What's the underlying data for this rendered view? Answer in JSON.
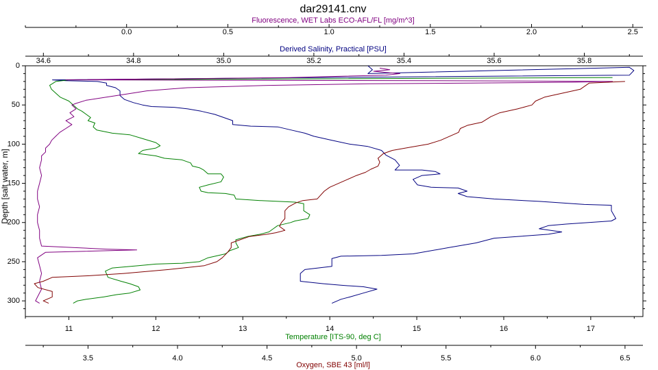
{
  "chart_data": {
    "type": "line",
    "title": "dar29141.cnv",
    "ylabel": "Depth [salt water, m]",
    "ylim": [
      0,
      320
    ],
    "yticks": [
      0,
      50,
      100,
      150,
      200,
      250,
      300
    ],
    "y_inverted": true,
    "grid": false,
    "axes": {
      "fluorescence": {
        "label": "Fluorescence, WET Labs ECO-AFL/FL [mg/m^3]",
        "position": "top-outer",
        "range": [
          -0.5,
          2.55
        ],
        "ticks": [
          "0.0",
          "0.5",
          "1.0",
          "1.5",
          "2.0",
          "2.5"
        ],
        "color": "#800080"
      },
      "salinity": {
        "label": "Derived Salinity, Practical [PSU]",
        "position": "top-inner",
        "range": [
          34.56,
          35.93
        ],
        "ticks": [
          "34.6",
          "34.8",
          "35.0",
          "35.2",
          "35.4",
          "35.6",
          "35.8"
        ],
        "color": "#000080"
      },
      "temperature": {
        "label": "Temperature [ITS-90, deg C]",
        "position": "bottom-inner",
        "range": [
          10.5,
          17.6
        ],
        "ticks": [
          "11",
          "12",
          "13",
          "14",
          "15",
          "16",
          "17"
        ],
        "color": "#008000"
      },
      "oxygen": {
        "label": "Oxygen, SBE 43 [ml/l]",
        "position": "bottom-outer",
        "range": [
          3.15,
          6.6
        ],
        "ticks": [
          "3.5",
          "4.0",
          "4.5",
          "5.0",
          "5.5",
          "6.0",
          "6.5"
        ],
        "color": "#800000"
      }
    },
    "series": [
      {
        "axis": "salinity",
        "color": "#000080",
        "points": [
          [
            35.32,
            0
          ],
          [
            35.33,
            5
          ],
          [
            35.32,
            10
          ],
          [
            35.9,
            2
          ],
          [
            35.91,
            6
          ],
          [
            35.9,
            12
          ],
          [
            35.2,
            15
          ],
          [
            34.62,
            18
          ],
          [
            34.65,
            19
          ],
          [
            34.72,
            20
          ],
          [
            34.74,
            22
          ],
          [
            34.74,
            25
          ],
          [
            34.76,
            28
          ],
          [
            34.77,
            32
          ],
          [
            34.77,
            38
          ],
          [
            34.78,
            43
          ],
          [
            34.8,
            47
          ],
          [
            34.82,
            50
          ],
          [
            34.84,
            52
          ],
          [
            34.89,
            53
          ],
          [
            34.92,
            55
          ],
          [
            34.95,
            58
          ],
          [
            34.98,
            62
          ],
          [
            35.0,
            66
          ],
          [
            35.02,
            70
          ],
          [
            35.02,
            75
          ],
          [
            35.06,
            77
          ],
          [
            35.12,
            78
          ],
          [
            35.15,
            82
          ],
          [
            35.18,
            86
          ],
          [
            35.2,
            90
          ],
          [
            35.24,
            95
          ],
          [
            35.28,
            100
          ],
          [
            35.32,
            103
          ],
          [
            35.35,
            108
          ],
          [
            35.36,
            114
          ],
          [
            35.38,
            120
          ],
          [
            35.39,
            127
          ],
          [
            35.38,
            133
          ],
          [
            35.44,
            133
          ],
          [
            35.47,
            135
          ],
          [
            35.48,
            138
          ],
          [
            35.44,
            140
          ],
          [
            35.42,
            145
          ],
          [
            35.43,
            152
          ],
          [
            35.46,
            155
          ],
          [
            35.52,
            156
          ],
          [
            35.54,
            160
          ],
          [
            35.52,
            163
          ],
          [
            35.54,
            167
          ],
          [
            35.6,
            170
          ],
          [
            35.7,
            173
          ],
          [
            35.8,
            177
          ],
          [
            35.86,
            178
          ],
          [
            35.86,
            185
          ],
          [
            35.87,
            195
          ],
          [
            35.86,
            198
          ],
          [
            35.76,
            202
          ],
          [
            35.72,
            204
          ],
          [
            35.7,
            208
          ],
          [
            35.75,
            212
          ],
          [
            35.72,
            215
          ],
          [
            35.6,
            220
          ],
          [
            35.56,
            226
          ],
          [
            35.5,
            232
          ],
          [
            35.42,
            240
          ],
          [
            35.35,
            242
          ],
          [
            35.26,
            243
          ],
          [
            35.24,
            246
          ],
          [
            35.24,
            256
          ],
          [
            35.18,
            260
          ],
          [
            35.17,
            265
          ],
          [
            35.17,
            275
          ],
          [
            35.22,
            278
          ],
          [
            35.26,
            280
          ],
          [
            35.31,
            282
          ],
          [
            35.34,
            285
          ],
          [
            35.31,
            290
          ],
          [
            35.28,
            295
          ],
          [
            35.26,
            298
          ],
          [
            35.24,
            303
          ]
        ]
      },
      {
        "axis": "temperature",
        "color": "#008000",
        "points": [
          [
            17.25,
            15
          ],
          [
            11.0,
            18
          ],
          [
            10.85,
            20
          ],
          [
            10.78,
            25
          ],
          [
            10.8,
            30
          ],
          [
            10.85,
            35
          ],
          [
            10.9,
            40
          ],
          [
            11.0,
            45
          ],
          [
            11.05,
            50
          ],
          [
            11.1,
            55
          ],
          [
            11.15,
            58
          ],
          [
            11.2,
            62
          ],
          [
            11.25,
            66
          ],
          [
            11.22,
            70
          ],
          [
            11.3,
            73
          ],
          [
            11.28,
            78
          ],
          [
            11.32,
            82
          ],
          [
            11.5,
            86
          ],
          [
            11.7,
            88
          ],
          [
            11.85,
            93
          ],
          [
            12.0,
            98
          ],
          [
            12.05,
            102
          ],
          [
            12.0,
            105
          ],
          [
            11.85,
            108
          ],
          [
            11.8,
            112
          ],
          [
            12.0,
            115
          ],
          [
            12.1,
            118
          ],
          [
            12.3,
            120
          ],
          [
            12.4,
            124
          ],
          [
            12.42,
            128
          ],
          [
            12.5,
            130
          ],
          [
            12.55,
            133
          ],
          [
            12.6,
            138
          ],
          [
            12.75,
            138
          ],
          [
            12.78,
            142
          ],
          [
            12.75,
            148
          ],
          [
            12.6,
            152
          ],
          [
            12.5,
            155
          ],
          [
            12.52,
            160
          ],
          [
            12.6,
            162
          ],
          [
            12.8,
            163
          ],
          [
            12.9,
            165
          ],
          [
            12.92,
            170
          ],
          [
            13.2,
            172
          ],
          [
            13.6,
            174
          ],
          [
            13.7,
            176
          ],
          [
            13.7,
            185
          ],
          [
            13.77,
            190
          ],
          [
            13.75,
            195
          ],
          [
            13.6,
            198
          ],
          [
            13.55,
            200
          ],
          [
            13.4,
            204
          ],
          [
            13.35,
            208
          ],
          [
            13.3,
            212
          ],
          [
            13.2,
            215
          ],
          [
            13.05,
            218
          ],
          [
            12.92,
            222
          ],
          [
            12.92,
            226
          ],
          [
            12.95,
            232
          ],
          [
            12.85,
            236
          ],
          [
            12.8,
            240
          ],
          [
            12.6,
            245
          ],
          [
            12.5,
            250
          ],
          [
            12.3,
            252
          ],
          [
            12.0,
            253
          ],
          [
            11.8,
            255
          ],
          [
            11.5,
            258
          ],
          [
            11.42,
            262
          ],
          [
            11.45,
            270
          ],
          [
            11.6,
            275
          ],
          [
            11.7,
            278
          ],
          [
            11.8,
            282
          ],
          [
            11.82,
            286
          ],
          [
            11.7,
            290
          ],
          [
            11.55,
            292
          ],
          [
            11.4,
            295
          ],
          [
            11.2,
            298
          ],
          [
            11.1,
            300
          ],
          [
            11.05,
            303
          ]
        ]
      },
      {
        "axis": "fluorescence",
        "color": "#800080",
        "points": [
          [
            1.25,
            3
          ],
          [
            1.3,
            5
          ],
          [
            1.22,
            7
          ],
          [
            1.3,
            9
          ],
          [
            1.35,
            10
          ],
          [
            1.28,
            12
          ],
          [
            0.8,
            15
          ],
          [
            -0.3,
            18
          ],
          [
            1.5,
            19
          ],
          [
            2.4,
            20
          ],
          [
            2.2,
            21
          ],
          [
            1.7,
            22
          ],
          [
            1.2,
            23
          ],
          [
            0.7,
            25
          ],
          [
            0.3,
            28
          ],
          [
            0.1,
            32
          ],
          [
            0.0,
            36
          ],
          [
            -0.1,
            40
          ],
          [
            -0.2,
            44
          ],
          [
            -0.25,
            48
          ],
          [
            -0.27,
            50
          ],
          [
            -0.25,
            55
          ],
          [
            -0.28,
            60
          ],
          [
            -0.26,
            65
          ],
          [
            -0.3,
            70
          ],
          [
            -0.27,
            75
          ],
          [
            -0.3,
            80
          ],
          [
            -0.33,
            85
          ],
          [
            -0.35,
            90
          ],
          [
            -0.37,
            95
          ],
          [
            -0.38,
            100
          ],
          [
            -0.4,
            105
          ],
          [
            -0.4,
            110
          ],
          [
            -0.42,
            115
          ],
          [
            -0.42,
            120
          ],
          [
            -0.43,
            130
          ],
          [
            -0.42,
            140
          ],
          [
            -0.43,
            150
          ],
          [
            -0.44,
            160
          ],
          [
            -0.44,
            170
          ],
          [
            -0.43,
            180
          ],
          [
            -0.44,
            190
          ],
          [
            -0.44,
            200
          ],
          [
            -0.43,
            210
          ],
          [
            -0.43,
            220
          ],
          [
            -0.42,
            230
          ],
          [
            -0.1,
            234
          ],
          [
            0.05,
            235
          ],
          [
            -0.4,
            238
          ],
          [
            -0.44,
            245
          ],
          [
            -0.43,
            255
          ],
          [
            -0.42,
            265
          ],
          [
            -0.43,
            275
          ],
          [
            -0.42,
            285
          ],
          [
            -0.44,
            295
          ],
          [
            -0.45,
            300
          ],
          [
            -0.43,
            303
          ]
        ]
      },
      {
        "axis": "oxygen",
        "color": "#800000",
        "points": [
          [
            6.5,
            20
          ],
          [
            6.3,
            22
          ],
          [
            6.25,
            30
          ],
          [
            6.15,
            35
          ],
          [
            6.05,
            40
          ],
          [
            6.0,
            45
          ],
          [
            5.98,
            50
          ],
          [
            5.9,
            55
          ],
          [
            5.8,
            60
          ],
          [
            5.75,
            65
          ],
          [
            5.7,
            72
          ],
          [
            5.62,
            76
          ],
          [
            5.58,
            80
          ],
          [
            5.57,
            85
          ],
          [
            5.52,
            90
          ],
          [
            5.47,
            95
          ],
          [
            5.4,
            100
          ],
          [
            5.3,
            104
          ],
          [
            5.2,
            108
          ],
          [
            5.15,
            112
          ],
          [
            5.12,
            118
          ],
          [
            5.13,
            123
          ],
          [
            5.12,
            128
          ],
          [
            5.08,
            132
          ],
          [
            5.05,
            136
          ],
          [
            5.0,
            140
          ],
          [
            4.95,
            145
          ],
          [
            4.9,
            150
          ],
          [
            4.85,
            155
          ],
          [
            4.82,
            160
          ],
          [
            4.8,
            165
          ],
          [
            4.78,
            170
          ],
          [
            4.7,
            172
          ],
          [
            4.66,
            175
          ],
          [
            4.62,
            180
          ],
          [
            4.6,
            185
          ],
          [
            4.6,
            195
          ],
          [
            4.58,
            200
          ],
          [
            4.57,
            205
          ],
          [
            4.6,
            210
          ],
          [
            4.55,
            213
          ],
          [
            4.5,
            215
          ],
          [
            4.4,
            218
          ],
          [
            4.35,
            222
          ],
          [
            4.3,
            226
          ],
          [
            4.3,
            232
          ],
          [
            4.28,
            238
          ],
          [
            4.25,
            245
          ],
          [
            4.22,
            250
          ],
          [
            4.15,
            255
          ],
          [
            3.95,
            260
          ],
          [
            3.7,
            265
          ],
          [
            3.5,
            268
          ],
          [
            3.3,
            270
          ],
          [
            3.25,
            275
          ],
          [
            3.2,
            278
          ],
          [
            3.22,
            283
          ],
          [
            3.3,
            288
          ],
          [
            3.3,
            295
          ],
          [
            3.25,
            300
          ],
          [
            3.28,
            303
          ]
        ]
      }
    ]
  }
}
